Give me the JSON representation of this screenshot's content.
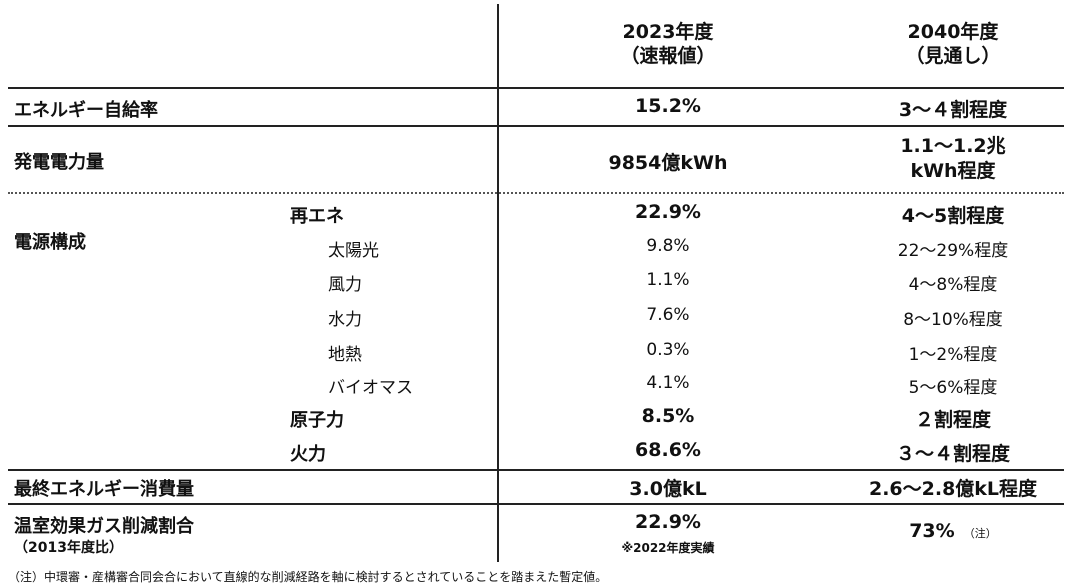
{
  "header": {
    "col1_line1": "2023年度",
    "col1_line2": "（速報値）",
    "col2_line1": "2040年度",
    "col2_line2": "（見通し）"
  },
  "rows": {
    "self_sufficiency": {
      "label": "エネルギー自給率",
      "v2023": "15.2%",
      "v2040": "3～４割程度"
    },
    "generation": {
      "label": "発電電力量",
      "v2023": "9854億kWh",
      "v2040_line1": "1.1～1.2兆",
      "v2040_line2": "kWh程度"
    },
    "power_mix": {
      "label": "電源構成",
      "renewables": {
        "label": "再エネ",
        "v2023": "22.9%",
        "v2040": "4～5割程度"
      },
      "renewable_items": [
        {
          "label": "太陽光",
          "v2023": "9.8%",
          "v2040": "22～29%程度"
        },
        {
          "label": "風力",
          "v2023": "1.1%",
          "v2040": "4～8%程度"
        },
        {
          "label": "水力",
          "v2023": "7.6%",
          "v2040": "8～10%程度"
        },
        {
          "label": "地熱",
          "v2023": "0.3%",
          "v2040": "1～2%程度"
        },
        {
          "label": "バイオマス",
          "v2023": "4.1%",
          "v2040": "5～6%程度"
        }
      ],
      "nuclear": {
        "label": "原子力",
        "v2023": "8.5%",
        "v2040": "２割程度"
      },
      "thermal": {
        "label": "火力",
        "v2023": "68.6%",
        "v2040": "３～４割程度"
      }
    },
    "final_consumption": {
      "label": "最終エネルギー消費量",
      "v2023": "3.0億kL",
      "v2040": "2.6～2.8億kL程度"
    },
    "ghg": {
      "label": "温室効果ガス削減割合",
      "sublabel": "（2013年度比）",
      "v2023": "22.9%",
      "v2023_note": "※2022年度実績",
      "v2040": "73%",
      "v2040_note": "（注）"
    }
  },
  "footnote": "（注）中環審・産構審合同会合において直線的な削減経路を軸に検討するとされていることを踏まえた暫定値。"
}
